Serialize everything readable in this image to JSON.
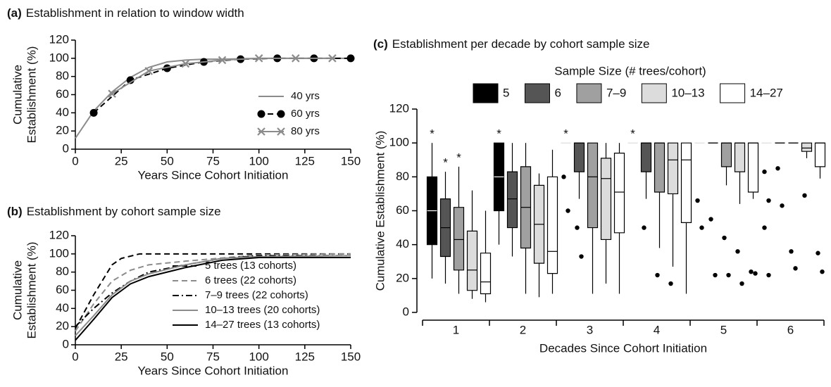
{
  "chart_data": [
    {
      "type": "line",
      "panel_label": "(a)",
      "title": "Establishment in relation to window width",
      "xlabel": "Years Since Cohort Initiation",
      "ylabel": [
        "Cumulative",
        "Establishment (%)"
      ],
      "xlim": [
        0,
        150
      ],
      "ylim": [
        0,
        120
      ],
      "xticks": [
        0,
        25,
        50,
        75,
        100,
        125,
        150
      ],
      "yticks": [
        0,
        20,
        40,
        60,
        80,
        100,
        120
      ],
      "series": [
        {
          "name": "40 yrs",
          "color": "#8c8c8c",
          "line_style": "solid",
          "marker": null,
          "x": [
            0,
            10,
            20,
            30,
            40,
            50,
            60,
            70,
            80,
            100,
            150
          ],
          "values": [
            12,
            42,
            63,
            79,
            90,
            96,
            98,
            99,
            99,
            100,
            100
          ]
        },
        {
          "name": "60 yrs",
          "color": "#000000",
          "line_style": "dashed",
          "marker": "circle",
          "x": [
            10,
            30,
            50,
            70,
            90,
            110,
            130,
            150
          ],
          "values": [
            40,
            76,
            89,
            96,
            99,
            100,
            100,
            100
          ]
        },
        {
          "name": "80 yrs",
          "color": "#8c8c8c",
          "line_style": "solid",
          "marker": "x",
          "x": [
            20,
            40,
            60,
            80,
            100,
            120,
            140
          ],
          "values": [
            61,
            86,
            94,
            98,
            100,
            100,
            100
          ]
        }
      ]
    },
    {
      "type": "line",
      "panel_label": "(b)",
      "title": "Establishment by cohort sample size",
      "xlabel": "Years Since Cohort Initiation",
      "ylabel": [
        "Cumulative",
        "Establishment (%)"
      ],
      "xlim": [
        0,
        150
      ],
      "ylim": [
        0,
        120
      ],
      "xticks": [
        0,
        25,
        50,
        75,
        100,
        125,
        150
      ],
      "yticks": [
        0,
        20,
        40,
        60,
        80,
        100,
        120
      ],
      "series": [
        {
          "name": "5 trees (13 cohorts)",
          "color": "#000000",
          "line_style": "dashed",
          "marker": null,
          "x": [
            0,
            10,
            20,
            25,
            35,
            50,
            100,
            150
          ],
          "values": [
            18,
            55,
            88,
            95,
            100,
            100,
            100,
            100
          ]
        },
        {
          "name": "6 trees (22 cohorts)",
          "color": "#8c8c8c",
          "line_style": "dashed",
          "marker": null,
          "x": [
            0,
            10,
            20,
            30,
            40,
            60,
            100,
            150
          ],
          "values": [
            15,
            45,
            70,
            82,
            88,
            92,
            99,
            100
          ]
        },
        {
          "name": "7–9 trees (22 cohorts)",
          "color": "#000000",
          "line_style": "dashdot",
          "marker": null,
          "x": [
            0,
            10,
            20,
            30,
            40,
            60,
            80,
            100,
            150
          ],
          "values": [
            20,
            40,
            57,
            70,
            80,
            88,
            95,
            98,
            98
          ]
        },
        {
          "name": "10–13 trees (20 cohorts)",
          "color": "#8c8c8c",
          "line_style": "solid",
          "marker": null,
          "x": [
            0,
            10,
            20,
            30,
            40,
            60,
            80,
            100,
            150
          ],
          "values": [
            10,
            32,
            55,
            70,
            78,
            88,
            95,
            97,
            98
          ]
        },
        {
          "name": "14–27 trees (13 cohorts)",
          "color": "#000000",
          "line_style": "solid",
          "marker": null,
          "x": [
            0,
            10,
            20,
            30,
            40,
            60,
            80,
            100,
            150
          ],
          "values": [
            5,
            28,
            52,
            67,
            75,
            85,
            93,
            96,
            96
          ]
        }
      ]
    },
    {
      "type": "box",
      "panel_label": "(c)",
      "title": "Establishment per decade by cohort sample size",
      "legend_title": "Sample Size (# trees/cohort)",
      "xlabel": "Decades Since Cohort Initiation",
      "ylabel": "Cumulative Establishment (%)",
      "categories": [
        "1",
        "2",
        "3",
        "4",
        "5",
        "6"
      ],
      "ylim": [
        0,
        120
      ],
      "yticks": [
        0,
        20,
        40,
        60,
        80,
        100,
        120
      ],
      "series": [
        {
          "name": "5",
          "color": "#000000",
          "boxes": [
            {
              "low": 20,
              "q1": 40,
              "median": 60,
              "q3": 80,
              "high": 100,
              "outliers": [],
              "annotation": "*"
            },
            {
              "low": 40,
              "q1": 60,
              "median": 80,
              "q3": 100,
              "high": 100,
              "outliers": [],
              "annotation": "*"
            },
            {
              "low": 100,
              "q1": 100,
              "median": 100,
              "q3": 100,
              "high": 100,
              "outliers": [
                80,
                60
              ],
              "annotation": "*"
            },
            {
              "low": 100,
              "q1": 100,
              "median": 100,
              "q3": 100,
              "high": 100,
              "outliers": [],
              "annotation": "*"
            },
            {
              "low": 100,
              "q1": 100,
              "median": 100,
              "q3": 100,
              "high": 100,
              "outliers": [
                66,
                50
              ]
            },
            {
              "low": 100,
              "q1": 100,
              "median": 100,
              "q3": 100,
              "high": 100,
              "outliers": [
                83,
                66,
                50,
                22
              ]
            }
          ]
        },
        {
          "name": "6",
          "color": "#555555",
          "boxes": [
            {
              "low": 17,
              "q1": 33,
              "median": 50,
              "q3": 67,
              "high": 83,
              "outliers": [],
              "annotation": "*"
            },
            {
              "low": 33,
              "q1": 50,
              "median": 67,
              "q3": 83,
              "high": 100,
              "outliers": []
            },
            {
              "low": 67,
              "q1": 83,
              "median": 100,
              "q3": 100,
              "high": 100,
              "outliers": [
                50,
                33
              ]
            },
            {
              "low": 67,
              "q1": 83,
              "median": 100,
              "q3": 100,
              "high": 100,
              "outliers": [
                50
              ]
            },
            {
              "low": 100,
              "q1": 100,
              "median": 100,
              "q3": 100,
              "high": 100,
              "outliers": [
                55,
                22
              ]
            },
            {
              "low": 100,
              "q1": 100,
              "median": 100,
              "q3": 100,
              "high": 100,
              "outliers": [
                85,
                63
              ]
            }
          ]
        },
        {
          "name": "7–9",
          "color": "#a0a0a0",
          "boxes": [
            {
              "low": 11,
              "q1": 25,
              "median": 43,
              "q3": 62,
              "high": 86,
              "outliers": [],
              "annotation": "*"
            },
            {
              "low": 11,
              "q1": 38,
              "median": 62,
              "q3": 86,
              "high": 100,
              "outliers": []
            },
            {
              "low": 11,
              "q1": 50,
              "median": 80,
              "q3": 100,
              "high": 100,
              "outliers": []
            },
            {
              "low": 38,
              "q1": 71,
              "median": 100,
              "q3": 100,
              "high": 100,
              "outliers": [
                22
              ]
            },
            {
              "low": 75,
              "q1": 86,
              "median": 100,
              "q3": 100,
              "high": 100,
              "outliers": [
                44,
                22
              ]
            },
            {
              "low": 100,
              "q1": 100,
              "median": 100,
              "q3": 100,
              "high": 100,
              "outliers": [
                36,
                26
              ]
            }
          ]
        },
        {
          "name": "10–13",
          "color": "#dcdcdc",
          "boxes": [
            {
              "low": 8,
              "q1": 13,
              "median": 25,
              "q3": 48,
              "high": 72,
              "outliers": []
            },
            {
              "low": 9,
              "q1": 29,
              "median": 52,
              "q3": 75,
              "high": 82,
              "outliers": []
            },
            {
              "low": 17,
              "q1": 43,
              "median": 79,
              "q3": 91,
              "high": 100,
              "outliers": []
            },
            {
              "low": 27,
              "q1": 70,
              "median": 90,
              "q3": 100,
              "high": 100,
              "outliers": [
                17
              ]
            },
            {
              "low": 64,
              "q1": 83,
              "median": 100,
              "q3": 100,
              "high": 100,
              "outliers": [
                36,
                17
              ]
            },
            {
              "low": 91,
              "q1": 95,
              "median": 97,
              "q3": 100,
              "high": 100,
              "outliers": [
                69
              ]
            }
          ]
        },
        {
          "name": "14–27",
          "color": "#ffffff",
          "boxes": [
            {
              "low": 6,
              "q1": 11,
              "median": 18,
              "q3": 35,
              "high": 60,
              "outliers": []
            },
            {
              "low": 11,
              "q1": 23,
              "median": 36,
              "q3": 80,
              "high": 96,
              "outliers": []
            },
            {
              "low": 11,
              "q1": 47,
              "median": 71,
              "q3": 94,
              "high": 100,
              "outliers": []
            },
            {
              "low": 11,
              "q1": 53,
              "median": 90,
              "q3": 100,
              "high": 100,
              "outliers": []
            },
            {
              "low": 67,
              "q1": 71,
              "median": 100,
              "q3": 100,
              "high": 100,
              "outliers": [
                24,
                23
              ]
            },
            {
              "low": 79,
              "q1": 86,
              "median": 100,
              "q3": 100,
              "high": 100,
              "outliers": [
                35,
                24
              ]
            }
          ]
        }
      ]
    }
  ]
}
